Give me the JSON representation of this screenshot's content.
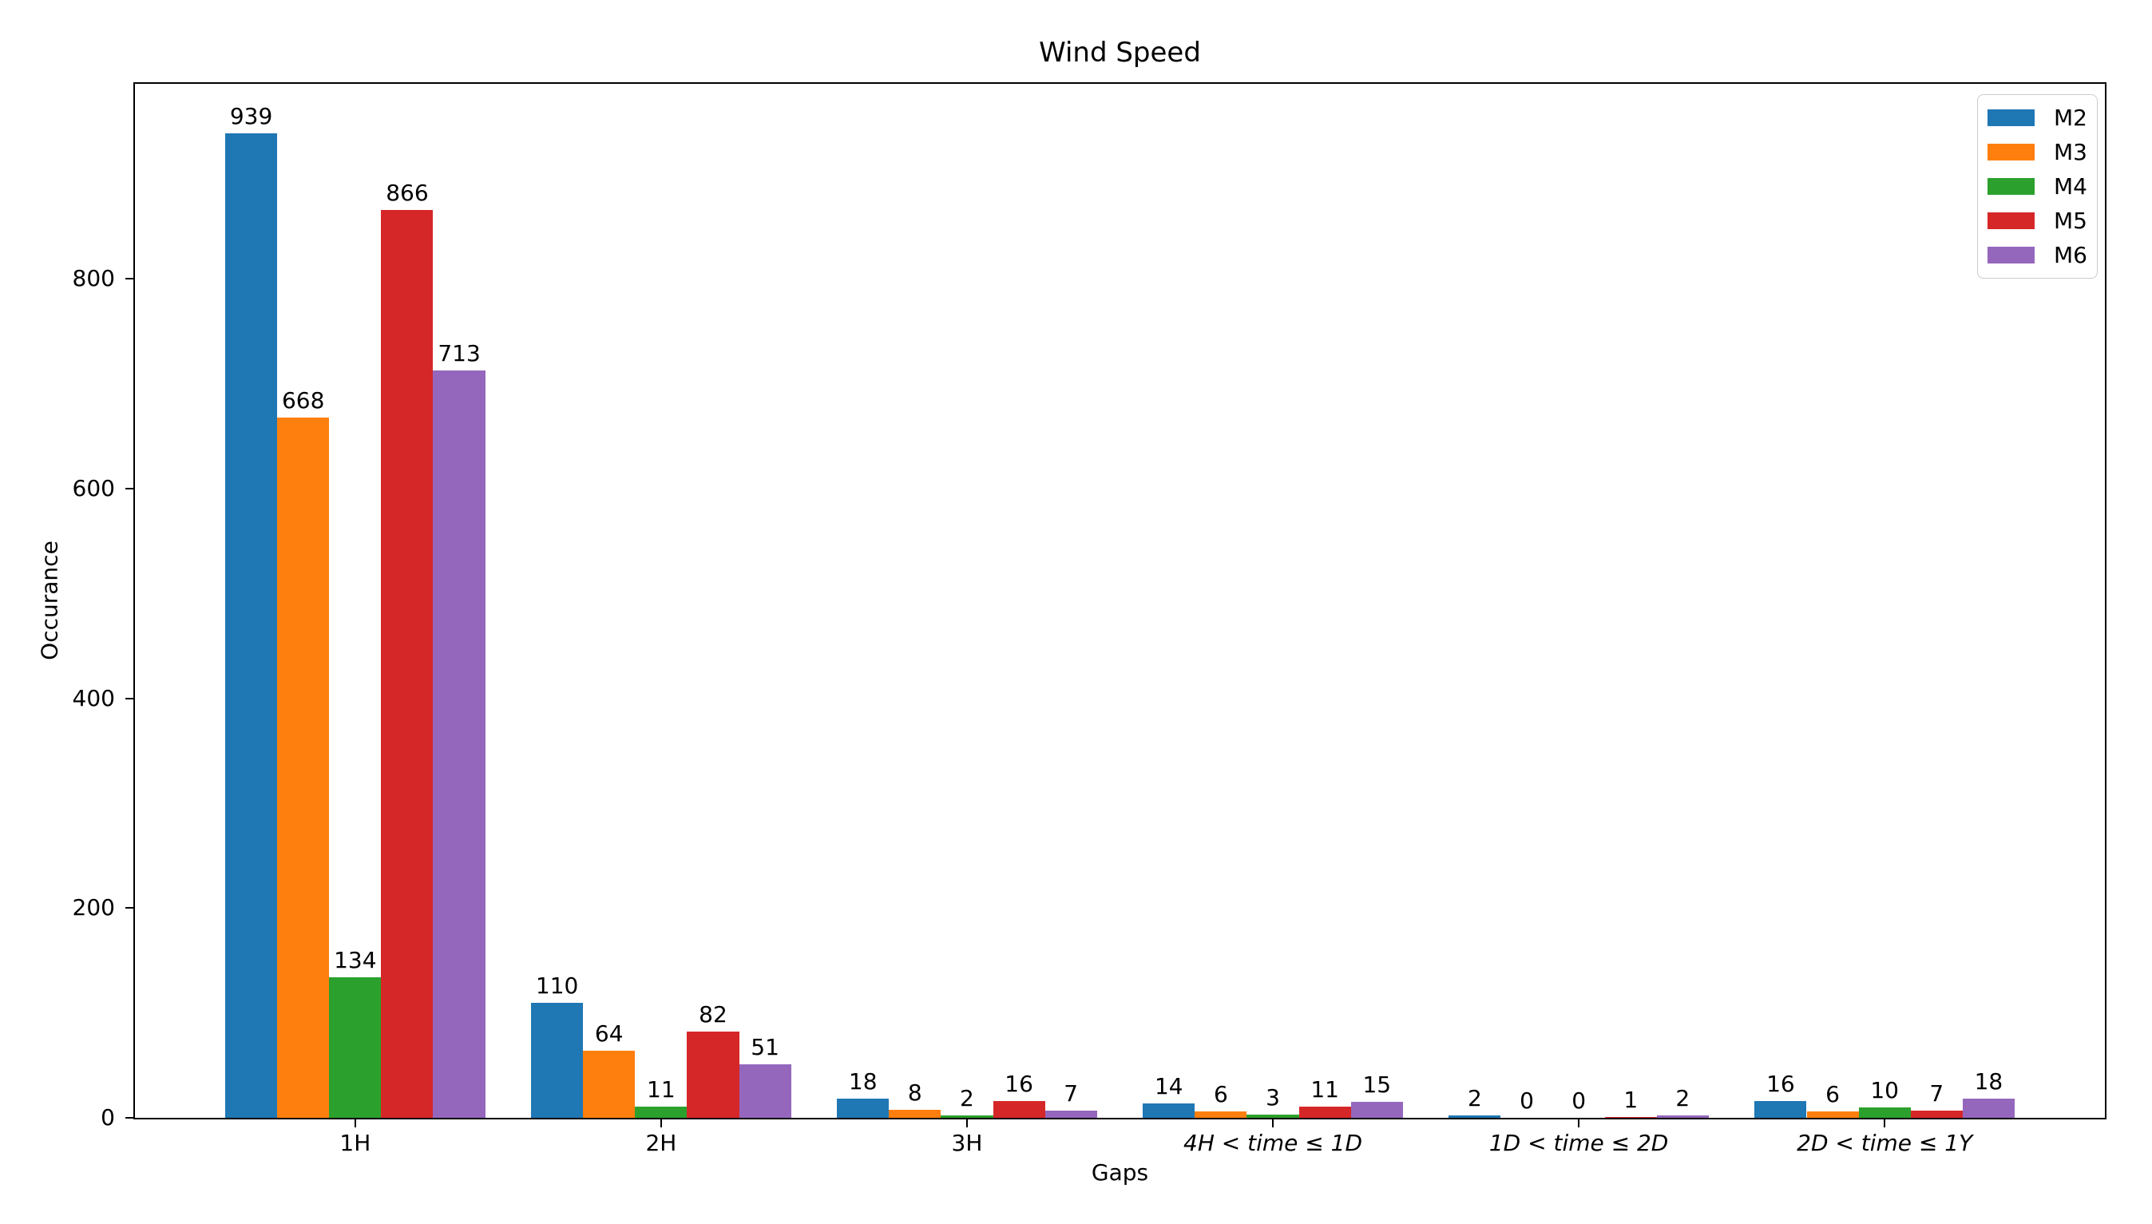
{
  "chart_data": {
    "type": "bar",
    "title": "Wind Speed",
    "xlabel": "Gaps",
    "ylabel": "Occurance",
    "categories": [
      {
        "label": "1H",
        "italic": false
      },
      {
        "label": "2H",
        "italic": false
      },
      {
        "label": "3H",
        "italic": false
      },
      {
        "label": "4H < time ≤ 1D",
        "italic": true
      },
      {
        "label": "1D < time ≤ 2D",
        "italic": true
      },
      {
        "label": "2D < time ≤ 1Y",
        "italic": true
      }
    ],
    "series": [
      {
        "name": "M2",
        "color": "#1f77b4",
        "values": [
          939,
          110,
          18,
          14,
          2,
          16
        ]
      },
      {
        "name": "M3",
        "color": "#ff7f0e",
        "values": [
          668,
          64,
          8,
          6,
          0,
          6
        ]
      },
      {
        "name": "M4",
        "color": "#2ca02c",
        "values": [
          134,
          11,
          2,
          3,
          0,
          10
        ]
      },
      {
        "name": "M5",
        "color": "#d62728",
        "values": [
          866,
          82,
          16,
          11,
          1,
          7
        ]
      },
      {
        "name": "M6",
        "color": "#9467bd",
        "values": [
          713,
          51,
          7,
          15,
          2,
          18
        ]
      }
    ],
    "yticks": [
      0,
      200,
      400,
      600,
      800
    ],
    "ylim": [
      0,
      986
    ],
    "xlim": [
      -0.72,
      5.72
    ],
    "bar_width": 0.17,
    "grid": false,
    "value_labels": true,
    "legend_position": "upper right"
  }
}
